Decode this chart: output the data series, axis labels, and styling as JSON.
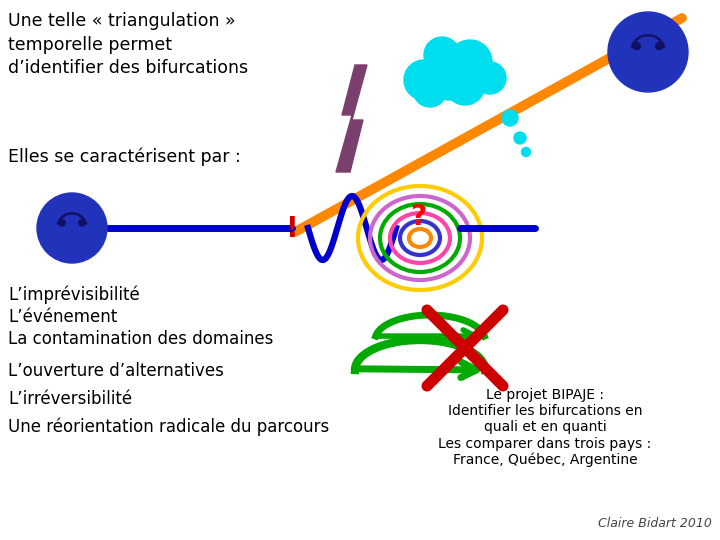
{
  "bg_color": "#ffffff",
  "title_text": "Une telle « triangulation »\ntemporelle permet\nd’identifier des bifurcations",
  "subtitle_text": "Elles se caractérisent par :",
  "list_items": [
    "L’imprévisibilité",
    "L’événement",
    "La contamination des domaines",
    "L’ouverture d’alternatives",
    "L’irréversibilité",
    "Une réorientation radicale du parcours"
  ],
  "bipaje_text": "Le projet BIPAJE :\nIdentifier les bifurcations en\nquali et en quanti\nLes comparer dans trois pays :\nFrance, Québec, Argentine",
  "footer_text": "Claire Bidart 2010",
  "smiley_left_color": "#2233bb",
  "smiley_right_color": "#2233bb",
  "cloud_color": "#00ddee",
  "lightning_color": "#7b3f6e",
  "orange_line_color": "#ff8800",
  "blue_line_color": "#0000cc",
  "red_exclamation_color": "#cc0000",
  "green_arrow_color": "#00aa00",
  "red_x_color": "#cc0000",
  "spiral_colors": [
    "#ffcc00",
    "#cc66cc",
    "#00aa00",
    "#ff44aa",
    "#3333cc",
    "#ff8800"
  ]
}
